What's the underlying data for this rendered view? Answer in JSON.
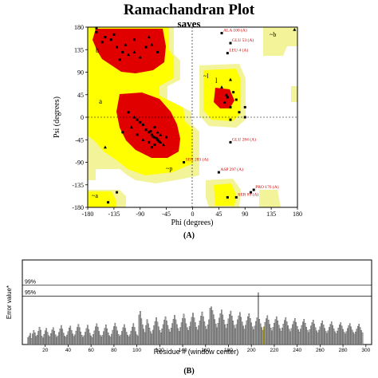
{
  "figure_labels": {
    "panel_a": "(A)",
    "panel_b": "(B)"
  },
  "colors": {
    "core": "#e00000",
    "allowed": "#ffff00",
    "generous": "#f3f39a",
    "disallowed": "#ffffff",
    "bar": "#a0a0a0",
    "highlight": "#b0a000"
  },
  "chart_data": [
    {
      "type": "scatter",
      "title": "Ramachandran Plot",
      "subtitle": "saves",
      "xlabel": "Phi (degrees)",
      "ylabel": "Psi (degrees)",
      "xlim": [
        -180,
        180
      ],
      "ylim": [
        -180,
        180
      ],
      "xticks": [
        "-180",
        "-135",
        "-90",
        "-45",
        "0",
        "45",
        "90",
        "135",
        "180"
      ],
      "yticks": [
        "180",
        "135",
        "90",
        "45",
        "0",
        "-45",
        "-90",
        "-135",
        "-180"
      ],
      "region_labels": [
        "b",
        "a",
        "l",
        "~b",
        "~a",
        "~l",
        "~p"
      ],
      "annotations": [
        {
          "text": "ALA 100 (A)",
          "phi": 50,
          "psi": 168
        },
        {
          "text": "GLU 53 (A)",
          "phi": 65,
          "psi": 148
        },
        {
          "text": "LEU 4 (A)",
          "phi": 60,
          "psi": 128
        },
        {
          "text": "GLU 284 (A)",
          "phi": 65,
          "psi": -50
        },
        {
          "text": "SER 283 (A)",
          "phi": -15,
          "psi": -90
        },
        {
          "text": "ASP 297 (A)",
          "phi": 45,
          "psi": -110
        },
        {
          "text": "PRO 176 (A)",
          "phi": 105,
          "psi": -145
        },
        {
          "text": "SER 89 (A)",
          "phi": 75,
          "psi": -160
        }
      ],
      "points": [
        [
          -65,
          -40
        ],
        [
          -60,
          -45
        ],
        [
          -70,
          -35
        ],
        [
          -55,
          -50
        ],
        [
          -75,
          -30
        ],
        [
          -62,
          -42
        ],
        [
          -68,
          -38
        ],
        [
          -58,
          -48
        ],
        [
          -72,
          -28
        ],
        [
          -50,
          -55
        ],
        [
          -80,
          -25
        ],
        [
          -65,
          -20
        ],
        [
          -60,
          -30
        ],
        [
          -85,
          -15
        ],
        [
          -90,
          -10
        ],
        [
          -100,
          0
        ],
        [
          -110,
          10
        ],
        [
          -95,
          -5
        ],
        [
          -105,
          -20
        ],
        [
          -120,
          -30
        ],
        [
          -75,
          -50
        ],
        [
          -85,
          -45
        ],
        [
          -95,
          -35
        ],
        [
          -65,
          -55
        ],
        [
          -55,
          -35
        ],
        [
          -45,
          -40
        ],
        [
          -70,
          -60
        ],
        [
          -110,
          125
        ],
        [
          -120,
          130
        ],
        [
          -130,
          140
        ],
        [
          -100,
          130
        ],
        [
          -140,
          155
        ],
        [
          -80,
          140
        ],
        [
          -70,
          145
        ],
        [
          -150,
          160
        ],
        [
          -125,
          115
        ],
        [
          -90,
          120
        ],
        [
          -60,
          130
        ],
        [
          -155,
          150
        ],
        [
          -115,
          145
        ],
        [
          -135,
          165
        ],
        [
          -100,
          155
        ],
        [
          -75,
          160
        ],
        [
          -165,
          170
        ],
        [
          60,
          40
        ],
        [
          55,
          30
        ],
        [
          65,
          20
        ],
        [
          70,
          50
        ],
        [
          50,
          60
        ],
        [
          75,
          35
        ],
        [
          80,
          10
        ],
        [
          58,
          45
        ],
        [
          65,
          -5
        ],
        [
          90,
          20
        ],
        [
          65,
          75
        ],
        [
          90,
          0
        ],
        [
          -165,
          178
        ],
        [
          175,
          175
        ],
        [
          100,
          -150
        ],
        [
          60,
          -160
        ],
        [
          -150,
          -60
        ],
        [
          -130,
          -150
        ],
        [
          -145,
          -170
        ]
      ]
    },
    {
      "type": "bar",
      "xlabel": "Residue # (window center)",
      "ylabel": "Error value*",
      "xlim": [
        0,
        305
      ],
      "ylim": [
        0,
        30
      ],
      "threshold_lines": [
        {
          "label": "99%",
          "value": 21.1
        },
        {
          "label": "95%",
          "value": 17.2
        }
      ],
      "xticks": [
        20,
        40,
        60,
        80,
        100,
        120,
        140,
        160,
        180,
        200,
        220,
        240,
        260,
        280,
        300
      ],
      "highlight": {
        "x": 211,
        "value": 18.4
      },
      "values": [
        2.5,
        3.1,
        4.0,
        2.2,
        3.8,
        5.0,
        4.2,
        2.9,
        3.3,
        4.7,
        6.2,
        5.1,
        3.0,
        2.4,
        3.6,
        4.9,
        5.8,
        4.4,
        3.2,
        2.8,
        3.9,
        5.2,
        6.0,
        4.8,
        3.5,
        2.6,
        3.1,
        4.3,
        5.6,
        6.8,
        5.5,
        4.1,
        3.0,
        2.7,
        3.4,
        4.6,
        5.9,
        6.6,
        5.0,
        3.8,
        2.9,
        3.5,
        4.8,
        6.1,
        7.2,
        6.0,
        4.5,
        3.3,
        2.6,
        3.2,
        4.4,
        5.7,
        6.9,
        5.4,
        4.0,
        3.1,
        2.5,
        3.6,
        4.9,
        6.3,
        7.4,
        6.2,
        4.7,
        3.4,
        2.8,
        3.3,
        4.6,
        5.8,
        7.0,
        5.6,
        4.2,
        3.2,
        2.7,
        3.7,
        5.1,
        6.4,
        7.6,
        6.3,
        4.9,
        3.6,
        2.9,
        3.4,
        4.7,
        6.0,
        7.1,
        5.8,
        4.4,
        3.3,
        2.8,
        3.5,
        4.8,
        6.2,
        7.5,
        6.1,
        4.6,
        3.5,
        3.0,
        10.5,
        11.8,
        9.2,
        7.0,
        5.5,
        4.3,
        6.8,
        8.9,
        7.4,
        5.9,
        4.6,
        3.8,
        5.1,
        6.7,
        8.2,
        9.6,
        8.0,
        6.3,
        5.0,
        4.2,
        5.6,
        7.1,
        8.7,
        9.9,
        8.4,
        6.8,
        5.4,
        4.5,
        5.9,
        7.5,
        9.0,
        10.4,
        8.8,
        7.1,
        5.7,
        4.7,
        6.1,
        7.8,
        9.3,
        10.8,
        9.2,
        7.4,
        6.0,
        5.0,
        6.4,
        8.0,
        9.7,
        11.2,
        9.5,
        7.8,
        6.2,
        5.2,
        6.7,
        8.4,
        10.1,
        11.6,
        9.9,
        8.1,
        6.5,
        5.4,
        7.0,
        8.8,
        12.9,
        13.4,
        12.1,
        10.6,
        8.9,
        7.3,
        6.0,
        7.6,
        9.4,
        11.0,
        12.3,
        10.5,
        8.7,
        7.1,
        5.8,
        7.3,
        9.1,
        10.7,
        11.9,
        10.1,
        8.4,
        6.9,
        5.7,
        7.1,
        8.8,
        10.2,
        11.4,
        9.7,
        8.0,
        6.6,
        5.5,
        6.9,
        8.5,
        9.9,
        11.0,
        9.3,
        7.7,
        6.3,
        5.3,
        6.6,
        8.2,
        9.5,
        18.4,
        9.0,
        7.4,
        6.1,
        5.1,
        6.3,
        7.9,
        9.2,
        10.3,
        8.7,
        7.2,
        5.9,
        4.9,
        6.1,
        7.6,
        8.9,
        9.9,
        8.4,
        6.9,
        5.7,
        4.8,
        5.9,
        7.3,
        8.6,
        9.6,
        8.1,
        6.7,
        5.5,
        4.6,
        5.7,
        7.1,
        8.3,
        9.3,
        7.9,
        6.5,
        5.3,
        4.5,
        5.5,
        6.8,
        8.0,
        9.0,
        7.6,
        6.2,
        5.1,
        4.3,
        5.3,
        6.6,
        7.8,
        8.7,
        7.3,
        6.0,
        4.9,
        4.2,
        5.1,
        6.3,
        7.5,
        8.4,
        7.0,
        5.8,
        4.7,
        4.0,
        4.9,
        6.1,
        7.2,
        8.1,
        6.8,
        5.6,
        4.6,
        3.9,
        4.8,
        5.9,
        7.0,
        7.8,
        6.6,
        5.4,
        4.4,
        3.8,
        4.6,
        5.7,
        6.7,
        7.5,
        6.3,
        5.2,
        4.3,
        3.7,
        4.5,
        5.5,
        6.5,
        7.3,
        6.1,
        5.0,
        4.2
      ]
    }
  ]
}
